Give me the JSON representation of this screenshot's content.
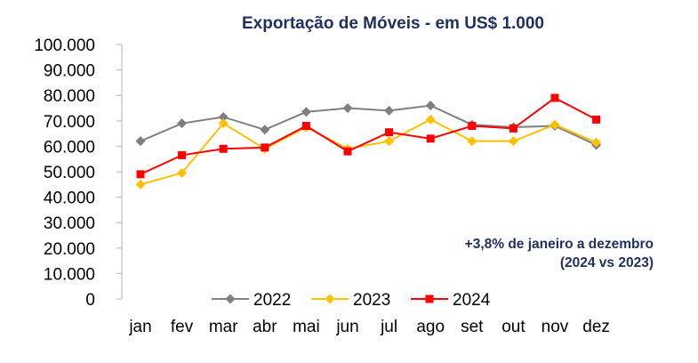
{
  "chart_data": {
    "type": "line",
    "title": "Exportação de Móveis - em US$ 1.000",
    "xlabel": "",
    "ylabel": "",
    "categories": [
      "jan",
      "fev",
      "mar",
      "abr",
      "mai",
      "jun",
      "jul",
      "ago",
      "set",
      "out",
      "nov",
      "dez"
    ],
    "ylim": [
      0,
      100000
    ],
    "yticks": [
      0,
      10000,
      20000,
      30000,
      40000,
      50000,
      60000,
      70000,
      80000,
      90000,
      100000
    ],
    "ytick_labels": [
      "0",
      "10.000",
      "20.000",
      "30.000",
      "40.000",
      "50.000",
      "60.000",
      "70.000",
      "80.000",
      "90.000",
      "100.000"
    ],
    "grid": false,
    "legend_position": "bottom",
    "series": [
      {
        "name": "2022",
        "color": "#7f7f7f",
        "marker": "diamond",
        "values": [
          62000,
          69000,
          71500,
          66500,
          73500,
          75000,
          74000,
          76000,
          68500,
          67500,
          68000,
          60500
        ]
      },
      {
        "name": "2023",
        "color": "#ffc000",
        "marker": "diamond",
        "values": [
          45000,
          49500,
          69000,
          59000,
          67500,
          59000,
          62000,
          70500,
          62000,
          62000,
          68500,
          61500
        ]
      },
      {
        "name": "2024",
        "color": "#ff0000",
        "marker": "square",
        "values": [
          49000,
          56500,
          59000,
          59500,
          68000,
          58000,
          65500,
          63000,
          68000,
          67000,
          79000,
          70500
        ]
      }
    ],
    "annotation": {
      "line1": "+3,8% de janeiro a dezembro",
      "line2": "(2024 vs 2023)"
    }
  }
}
